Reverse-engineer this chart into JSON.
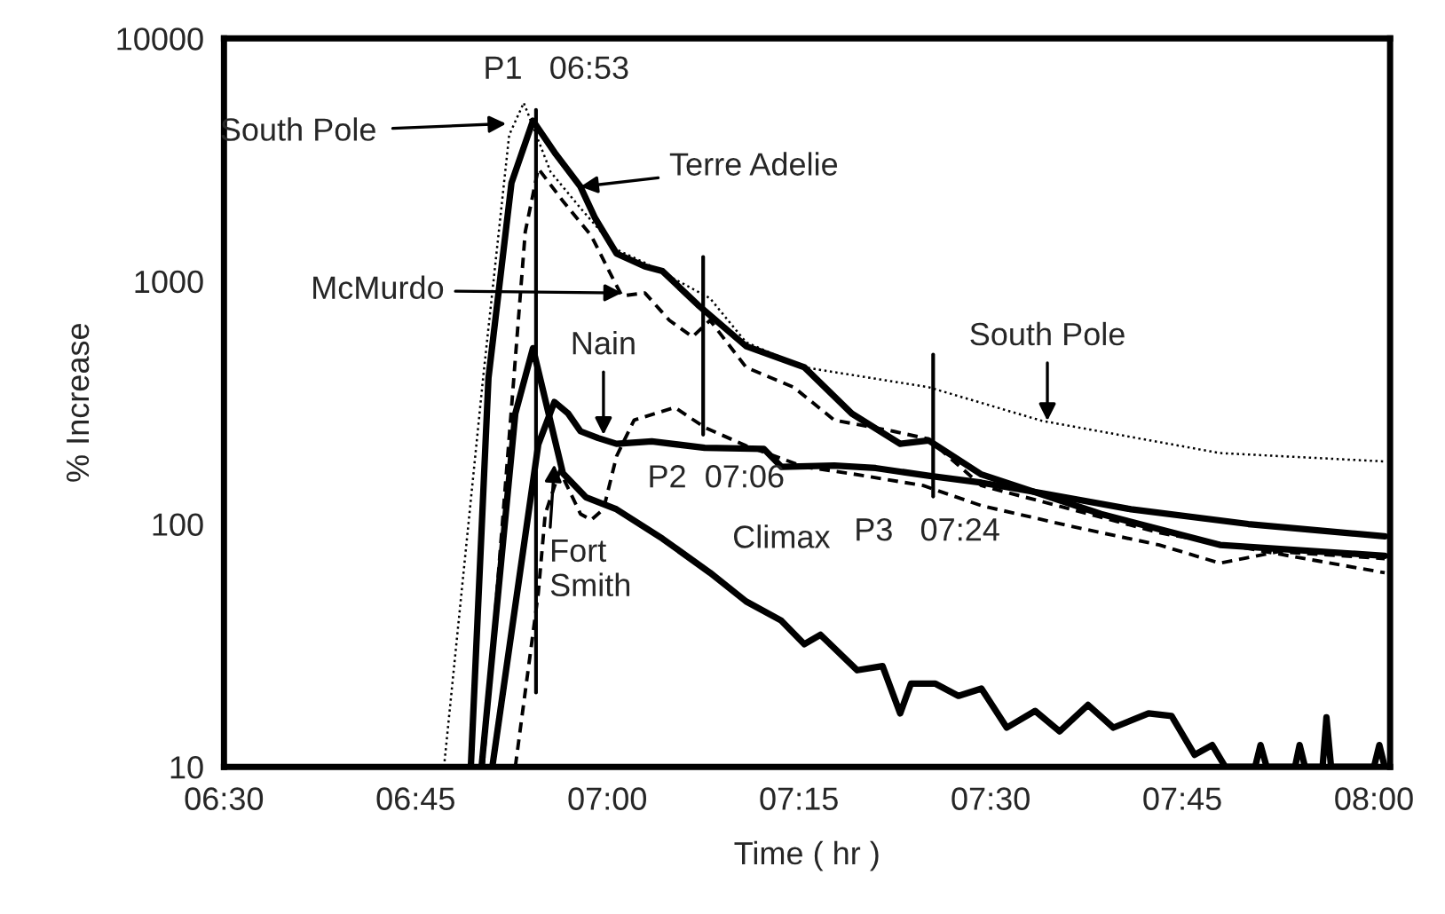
{
  "chart_data": {
    "type": "line",
    "xlabel": "Time ( hr )",
    "ylabel": "% Increase",
    "log": "y",
    "grid": false,
    "legend": false,
    "xlim": [
      6.5,
      8.021
    ],
    "ylim": [
      10,
      10000
    ],
    "xticks": [
      {
        "value": 6.5,
        "label": "06:30"
      },
      {
        "value": 6.75,
        "label": "06:45"
      },
      {
        "value": 7.0,
        "label": "07:00"
      },
      {
        "value": 7.25,
        "label": "07:15"
      },
      {
        "value": 7.5,
        "label": "07:30"
      },
      {
        "value": 7.75,
        "label": "07:45"
      },
      {
        "value": 8.0,
        "label": "08:00"
      }
    ],
    "yticks": [
      10,
      100,
      1000,
      10000
    ],
    "series": [
      {
        "color": "#000000",
        "line_style": "dotted",
        "x": [
          6.787,
          6.838,
          6.861,
          6.872,
          6.891,
          6.926,
          6.965,
          7.012,
          7.049,
          7.134,
          7.181,
          7.257,
          7.419,
          7.567,
          7.799,
          8.014
        ],
        "values": [
          10,
          400,
          1900,
          4000,
          5430,
          2820,
          2000,
          1350,
          1190,
          850,
          560,
          442,
          366,
          266,
          196,
          181
        ]
      },
      {
        "color": "#000000",
        "line_style": "solid",
        "x": [
          6.822,
          6.845,
          6.875,
          6.903,
          6.933,
          6.965,
          6.984,
          7.012,
          7.049,
          7.072,
          7.118,
          7.181,
          7.257,
          7.319,
          7.382,
          7.419,
          7.488,
          7.644,
          7.799,
          8.014
        ],
        "values": [
          10,
          400,
          2540,
          4580,
          3330,
          2450,
          1820,
          1300,
          1150,
          1100,
          800,
          540,
          442,
          285,
          214,
          221,
          160,
          110,
          82,
          74
        ]
      },
      {
        "color": "#000000",
        "line_style": "dashed",
        "x": [
          6.838,
          6.875,
          6.893,
          6.91,
          6.942,
          6.979,
          7.007,
          7.019,
          7.049,
          7.081,
          7.111,
          7.134,
          7.181,
          7.243,
          7.296,
          7.373,
          7.419,
          7.488,
          7.72,
          8.014
        ],
        "values": [
          10,
          300,
          1600,
          2910,
          2140,
          1540,
          1030,
          870,
          895,
          690,
          590,
          690,
          442,
          366,
          268,
          241,
          224,
          144,
          92,
          63
        ]
      },
      {
        "color": "#000000",
        "line_style": "solid",
        "x": [
          6.85,
          6.91,
          6.931,
          6.949,
          6.965,
          6.988,
          7.012,
          7.058,
          7.127,
          7.204,
          7.227,
          7.296,
          7.35,
          7.419,
          7.488,
          7.567,
          7.683,
          7.836,
          8.014
        ],
        "values": [
          10,
          213,
          318,
          285,
          241,
          226,
          214,
          219,
          206,
          204,
          172,
          174,
          170,
          158,
          148,
          134,
          115,
          100,
          89
        ]
      },
      {
        "color": "#000000",
        "line_style": "dashed",
        "x": [
          6.88,
          6.91,
          6.919,
          6.938,
          6.965,
          6.979,
          6.995,
          7.012,
          7.035,
          7.088,
          7.127,
          7.181,
          7.257,
          7.319,
          7.412,
          7.488,
          7.604,
          7.72,
          7.799,
          7.875,
          8.014
        ],
        "values": [
          10,
          52,
          110,
          166,
          110,
          104,
          115,
          190,
          268,
          302,
          250,
          210,
          172,
          161,
          144,
          119,
          98,
          82,
          69,
          77,
          72
        ]
      },
      {
        "color": "#000000",
        "line_style": "solid",
        "x": [
          6.836,
          6.88,
          6.903,
          6.942,
          6.972,
          7.012,
          7.072,
          7.134,
          7.181,
          7.227,
          7.257,
          7.278,
          7.326,
          7.359,
          7.382,
          7.396,
          7.428,
          7.458,
          7.488,
          7.521,
          7.558,
          7.59,
          7.627,
          7.66,
          7.706,
          7.736,
          7.766,
          7.789,
          7.806,
          7.845,
          7.852,
          7.86,
          7.897,
          7.903,
          7.91,
          7.933,
          7.938,
          7.944,
          8.0,
          8.007,
          8.014
        ],
        "values": [
          10,
          285,
          530,
          162,
          129,
          115,
          87,
          63,
          48,
          40,
          32,
          35,
          25,
          26,
          16.6,
          22,
          22,
          19.6,
          21,
          14.5,
          17,
          14,
          18,
          14.5,
          16.6,
          16.2,
          11.2,
          12.3,
          10,
          10,
          12.3,
          10,
          10,
          12.3,
          10,
          10,
          16,
          10,
          10,
          12.3,
          10
        ]
      }
    ],
    "ref_lines": [
      {
        "axis": "x",
        "value": 6.907
      },
      {
        "axis": "x",
        "value": 7.125
      },
      {
        "axis": "x",
        "value": 7.425
      }
    ],
    "annotations": [
      "South Pole",
      "P1   06:53",
      "P2  07:06",
      "P3   07:24",
      {
        "text": "Terre Adelie",
        "x": 6.965,
        "y": 2450
      },
      {
        "text": "McMurdo",
        "x": 7.019,
        "y": 895
      },
      {
        "text": "Nain",
        "x": 6.995,
        "y": 233
      },
      {
        "text": "Fort\nSmith",
        "x": 6.931,
        "y": 176
      },
      "Climax",
      {
        "text": "South Pole",
        "x": 7.574,
        "y": 266
      }
    ]
  }
}
